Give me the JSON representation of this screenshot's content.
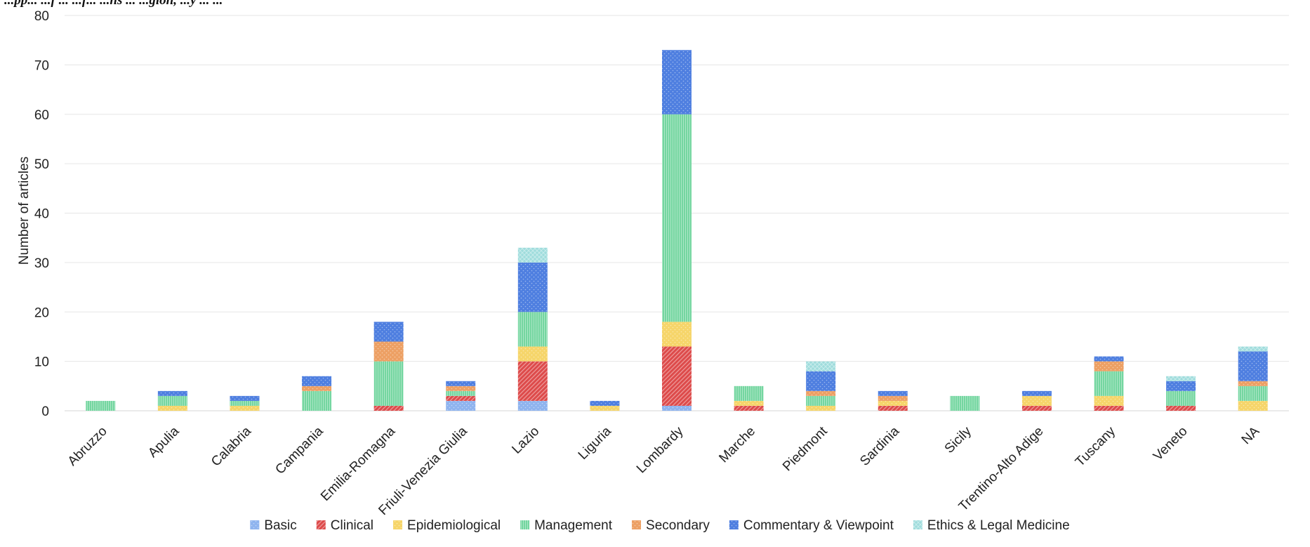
{
  "chart_data": {
    "type": "bar",
    "stacked": true,
    "caption_partial": "...pp... ...f ... ...f... ...ns ... ...gion, ...y ... ...",
    "ylabel": "Number of articles",
    "ylim": [
      0,
      80
    ],
    "yticks": [
      0,
      10,
      20,
      30,
      40,
      50,
      60,
      70,
      80
    ],
    "grid": true,
    "legend_position": "bottom",
    "categories": [
      "Abruzzo",
      "Apulia",
      "Calabria",
      "Campania",
      "Emilia-Romagna",
      "Friuli-Venezia Giulia",
      "Lazio",
      "Liguria",
      "Lombardy",
      "Marche",
      "Piedmont",
      "Sardinia",
      "Sicily",
      "Trentino-Alto Adige",
      "Tuscany",
      "Veneto",
      "NA"
    ],
    "series": [
      {
        "name": "Basic",
        "color": "#8fb4ef",
        "pattern": "dots",
        "values": [
          0,
          0,
          0,
          0,
          0,
          2,
          2,
          0,
          1,
          0,
          0,
          0,
          0,
          0,
          0,
          0,
          0
        ]
      },
      {
        "name": "Clinical",
        "color": "#dd4b4b",
        "pattern": "diag",
        "values": [
          0,
          0,
          0,
          0,
          1,
          1,
          8,
          0,
          12,
          1,
          0,
          1,
          0,
          1,
          1,
          1,
          0
        ]
      },
      {
        "name": "Epidemiological",
        "color": "#f6d56a",
        "pattern": "dots",
        "values": [
          0,
          1,
          1,
          0,
          0,
          0,
          3,
          1,
          5,
          1,
          1,
          1,
          0,
          2,
          2,
          0,
          2
        ]
      },
      {
        "name": "Management",
        "color": "#74d6a0",
        "pattern": "vert",
        "values": [
          2,
          2,
          1,
          4,
          9,
          1,
          7,
          0,
          42,
          3,
          2,
          0,
          3,
          0,
          5,
          3,
          3
        ]
      },
      {
        "name": "Secondary",
        "color": "#eda064",
        "pattern": "dots",
        "values": [
          0,
          0,
          0,
          1,
          4,
          1,
          0,
          0,
          0,
          0,
          1,
          1,
          0,
          0,
          2,
          0,
          1
        ]
      },
      {
        "name": "Commentary & Viewpoint",
        "color": "#4f7fe0",
        "pattern": "dots",
        "values": [
          0,
          1,
          1,
          2,
          4,
          1,
          10,
          1,
          13,
          0,
          4,
          1,
          0,
          1,
          1,
          2,
          6
        ]
      },
      {
        "name": "Ethics & Legal Medicine",
        "color": "#9fdcdc",
        "pattern": "cross",
        "values": [
          0,
          0,
          0,
          0,
          0,
          0,
          3,
          0,
          0,
          0,
          2,
          0,
          0,
          0,
          0,
          1,
          1
        ]
      }
    ]
  }
}
